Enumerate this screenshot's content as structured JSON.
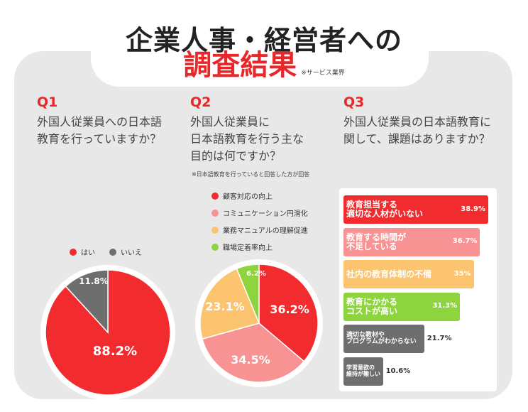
{
  "title": {
    "line1": "企業人事・経営者への",
    "line2": "調査結果",
    "note": "※サービス業界"
  },
  "q1": {
    "label": "Q1",
    "question": "外国人従業員への日本語\n教育を行っていますか？"
  },
  "q2": {
    "label": "Q2",
    "question": "外国人従業員に\n日本語教育を行う主な\n目的は何ですか？",
    "note": "※日本語教育を行っていると回答した方が回答"
  },
  "q3": {
    "label": "Q3",
    "question": "外国人従業員の日本語教育に\n関して、課題はありますか？"
  },
  "chart_data": [
    {
      "type": "pie",
      "categories": [
        "はい",
        "いいえ"
      ],
      "values": [
        88.2,
        11.8
      ],
      "labels": [
        "88.2%",
        "11.8%"
      ],
      "colors": [
        "#f12b2e",
        "#6e6e6e"
      ],
      "legend": "top"
    },
    {
      "type": "pie",
      "categories": [
        "顧客対応の向上",
        "コミュニケーション円滑化",
        "業務マニュアルの理解促進",
        "職場定着率向上"
      ],
      "values": [
        36.2,
        34.5,
        23.1,
        6.2
      ],
      "labels": [
        "36.2%",
        "34.5%",
        "23.1%",
        "6.2%"
      ],
      "colors": [
        "#f12b2e",
        "#f79393",
        "#fcc46e",
        "#8ed43e"
      ],
      "legend": "top"
    },
    {
      "type": "bar",
      "orientation": "horizontal",
      "categories": [
        "教育担当する\n適切な人材がいない",
        "教育する時間が\n不足している",
        "社内の教育体制の不備",
        "教育にかかる\nコストが高い",
        "適切な教材や\nプログラムがわからない",
        "学習意欲の\n維持が難しい"
      ],
      "values": [
        38.9,
        36.7,
        35,
        31.3,
        21.7,
        10.6
      ],
      "labels": [
        "38.9%",
        "36.7%",
        "35%",
        "31.3%",
        "21.7%",
        "10.6%"
      ],
      "colors": [
        "#f12b2e",
        "#f79393",
        "#fcc46e",
        "#8ed43e",
        "#6e6e6e",
        "#6e6e6e"
      ]
    }
  ]
}
